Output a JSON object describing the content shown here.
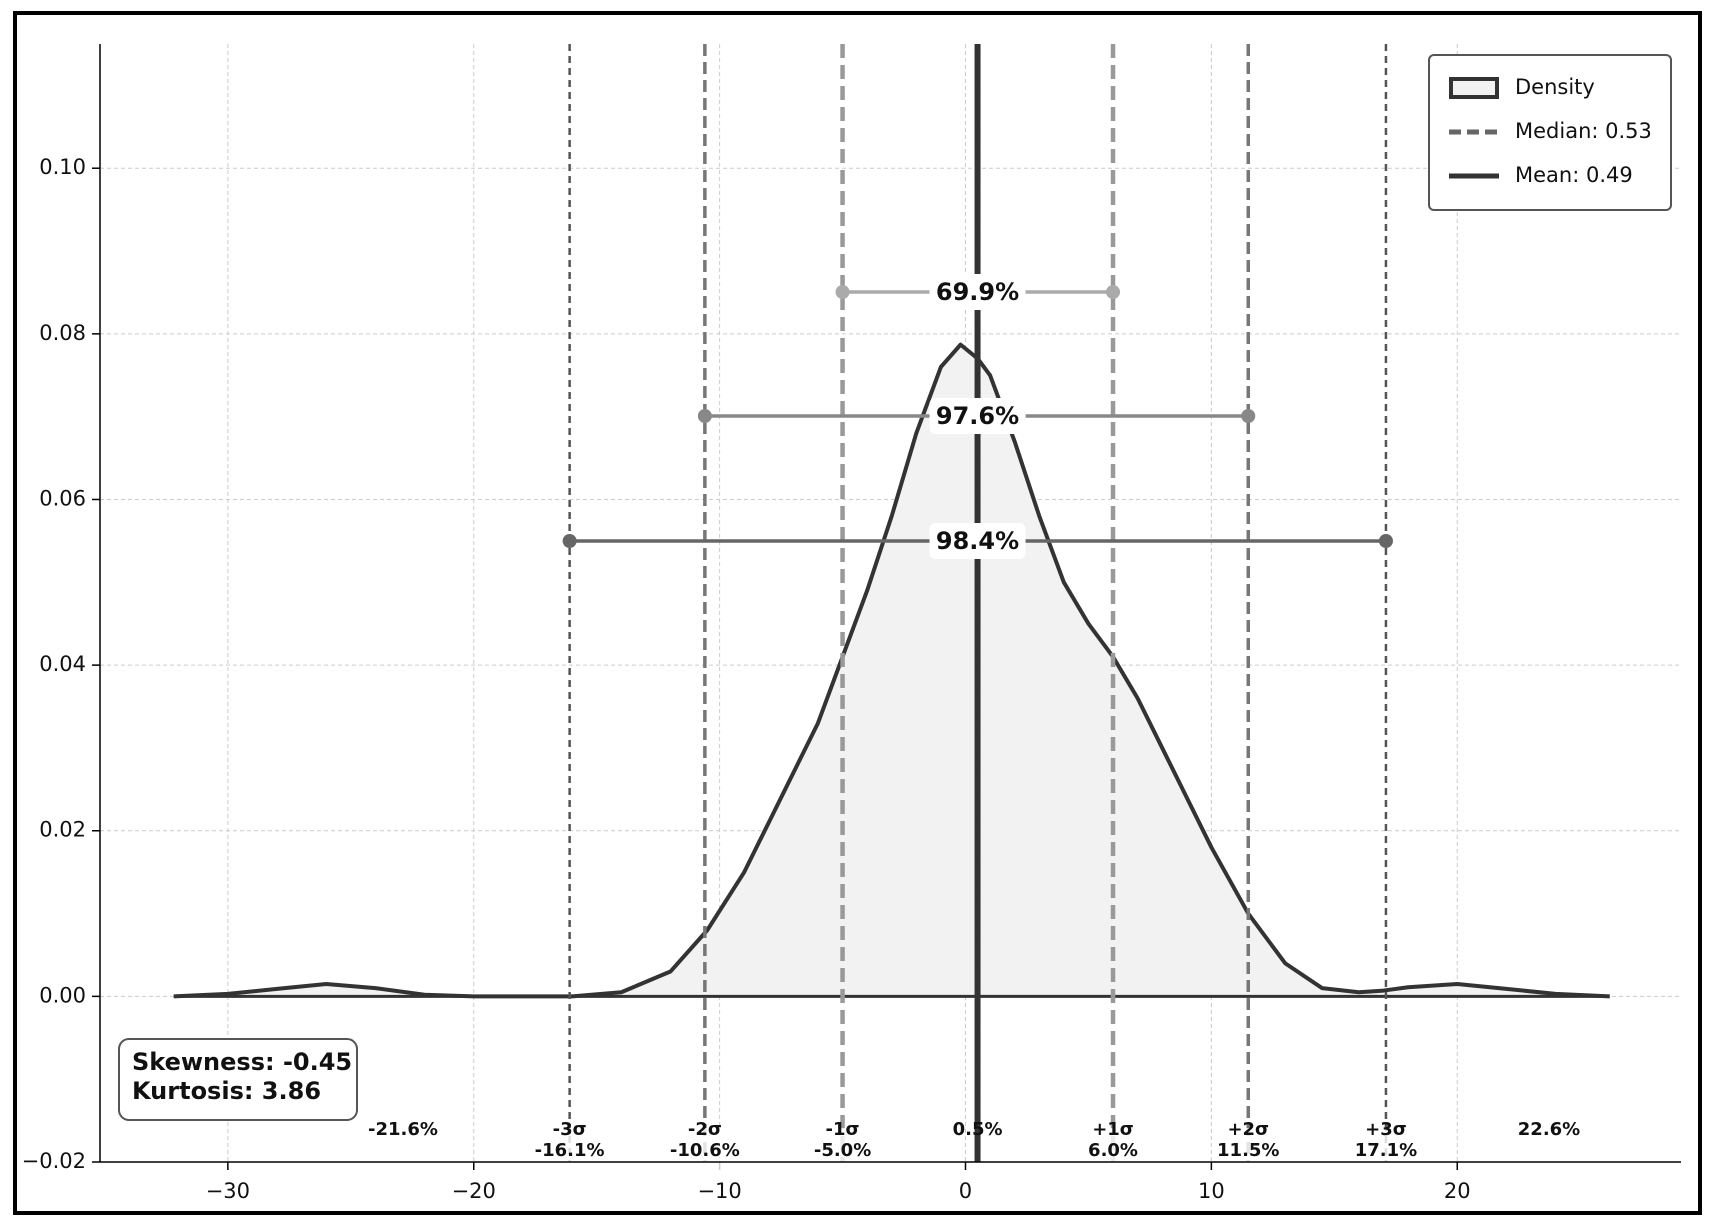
{
  "chart_data": {
    "type": "density",
    "x": [
      -32.2,
      -30,
      -28,
      -26,
      -24,
      -22,
      -20,
      -16,
      -14,
      -12,
      -10.5,
      -9,
      -8,
      -6,
      -5,
      -4,
      -3,
      -2,
      -1,
      -0.2,
      0.5,
      1,
      2,
      3,
      4,
      5,
      6,
      7,
      8,
      9,
      10,
      11.5,
      13,
      14.5,
      16,
      17,
      18,
      20,
      22,
      24,
      26.2
    ],
    "y": [
      0,
      0.0003,
      0.0009,
      0.0015,
      0.001,
      0.0002,
      0,
      0,
      0.0005,
      0.003,
      0.008,
      0.015,
      0.021,
      0.033,
      0.041,
      0.049,
      0.058,
      0.068,
      0.076,
      0.0787,
      0.077,
      0.075,
      0.067,
      0.058,
      0.05,
      0.045,
      0.041,
      0.036,
      0.03,
      0.024,
      0.018,
      0.01,
      0.004,
      0.001,
      0.0005,
      0.0007,
      0.0011,
      0.0015,
      0.0009,
      0.0003,
      0
    ],
    "series_name": "Density",
    "color": "#333333",
    "fill": "#f2f2f2",
    "xlim": [
      -35.2,
      29.1
    ],
    "ylim": [
      -0.02,
      0.115
    ],
    "xticks": [
      {
        "value": -30,
        "label": "−30"
      },
      {
        "value": -20,
        "label": "−20"
      },
      {
        "value": -10,
        "label": "−10"
      },
      0,
      10,
      20
    ],
    "yticks": [
      {
        "value": -0.02,
        "label": "−0.02"
      },
      {
        "value": 0,
        "label": "0.00"
      },
      0.02,
      0.04,
      0.06,
      0.08,
      {
        "value": 0.1,
        "label": "0.10"
      }
    ],
    "grid": true,
    "legend": "upper right",
    "median": {
      "name": "Median: 0.53",
      "value": 0.53,
      "color": "#666666"
    },
    "mean": {
      "name": "Mean: 0.49",
      "value": 0.49,
      "value_label": "0.5%",
      "color": "#333333"
    },
    "sigma_lines": [
      {
        "name": "-3σ",
        "value": -16.1,
        "value_label": "-16.1%",
        "color": "#555555"
      },
      {
        "name": "-2σ",
        "value": -10.6,
        "value_label": "-10.6%",
        "color": "#777777"
      },
      {
        "name": "-1σ",
        "value": -5.0,
        "value_label": "-5.0%",
        "color": "#999999"
      },
      {
        "name": "+1σ",
        "value": 6.0,
        "value_label": "6.0%",
        "color": "#999999"
      },
      {
        "name": "+2σ",
        "value": 11.5,
        "value_label": "11.5%",
        "color": "#777777"
      },
      {
        "name": "+3σ",
        "value": 17.1,
        "value_label": "17.1%",
        "color": "#555555"
      }
    ],
    "ranges": [
      {
        "label": "69.9%",
        "color": "#aaaaaa"
      },
      {
        "label": "97.6%",
        "color": "#888888"
      },
      {
        "label": "98.4%",
        "color": "#666666"
      }
    ],
    "tails": [
      "-21.6%",
      "22.6%"
    ],
    "stats": [
      "Skewness: -0.45",
      "Kurtosis: 3.86"
    ]
  }
}
